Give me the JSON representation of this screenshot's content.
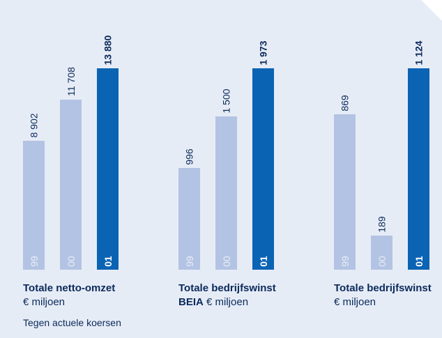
{
  "chart_data": [
    {
      "type": "bar",
      "categories": [
        "99",
        "00",
        "01"
      ],
      "values": [
        8902,
        11708,
        13880
      ],
      "value_labels": [
        "8 902",
        "11 708",
        "13 880"
      ],
      "title": "Totale netto-omzet",
      "subtitle": "€ miljoen",
      "colors": [
        "#b3c3e3",
        "#b3c3e3",
        "#0b63b4"
      ]
    },
    {
      "type": "bar",
      "categories": [
        "99",
        "00",
        "01"
      ],
      "values": [
        996,
        1500,
        1973
      ],
      "value_labels": [
        "996",
        "1 500",
        "1 973"
      ],
      "title": "Totale bedrijfswinst",
      "title_line2": "BEIA",
      "subtitle": "€ miljoen",
      "colors": [
        "#b3c3e3",
        "#b3c3e3",
        "#0b63b4"
      ]
    },
    {
      "type": "bar",
      "categories": [
        "99",
        "00",
        "01"
      ],
      "values": [
        869,
        189,
        1124
      ],
      "value_labels": [
        "869",
        "189",
        "1 124"
      ],
      "title": "Totale bedrijfswinst",
      "subtitle": "€ miljoen",
      "colors": [
        "#b3c3e3",
        "#b3c3e3",
        "#0b63b4"
      ]
    }
  ],
  "footnote": "Tegen actuele koersen"
}
